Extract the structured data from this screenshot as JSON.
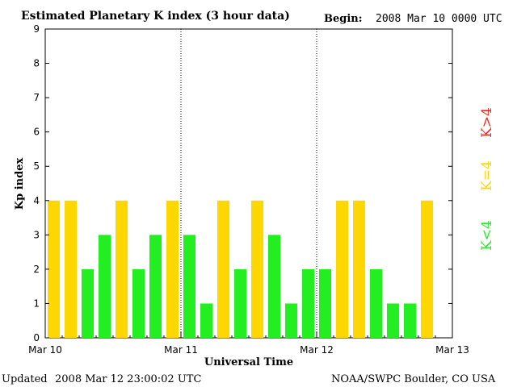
{
  "header": {
    "title": "Estimated Planetary K index (3 hour data)",
    "begin_label": "Begin:",
    "begin_value": "2008 Mar 10 0000 UTC"
  },
  "footer": {
    "updated_label": "Updated",
    "updated_value": "2008 Mar 12 23:00:02 UTC",
    "source": "NOAA/SWPC Boulder, CO USA"
  },
  "legend": {
    "gt4": {
      "label": "K>4",
      "color": "#ff2020"
    },
    "eq4": {
      "label": "K=4",
      "color": "#ffd700"
    },
    "lt4": {
      "label": "K<4",
      "color": "#22ee22"
    }
  },
  "chart_data": {
    "type": "bar",
    "title": "Estimated Planetary K index (3 hour data)",
    "xlabel": "Universal Time",
    "ylabel": "Kp index",
    "ylim": [
      0,
      9
    ],
    "yticks": [
      0,
      1,
      2,
      3,
      4,
      5,
      6,
      7,
      8,
      9
    ],
    "day_labels": [
      "Mar 10",
      "Mar 11",
      "Mar 12",
      "Mar 13"
    ],
    "interval_hours": 3,
    "values": [
      4,
      4,
      2,
      3,
      4,
      2,
      3,
      4,
      3,
      1,
      4,
      2,
      4,
      3,
      1,
      2,
      2,
      4,
      4,
      2,
      1,
      1,
      4
    ],
    "day_separators": "dotted",
    "grid": false
  }
}
